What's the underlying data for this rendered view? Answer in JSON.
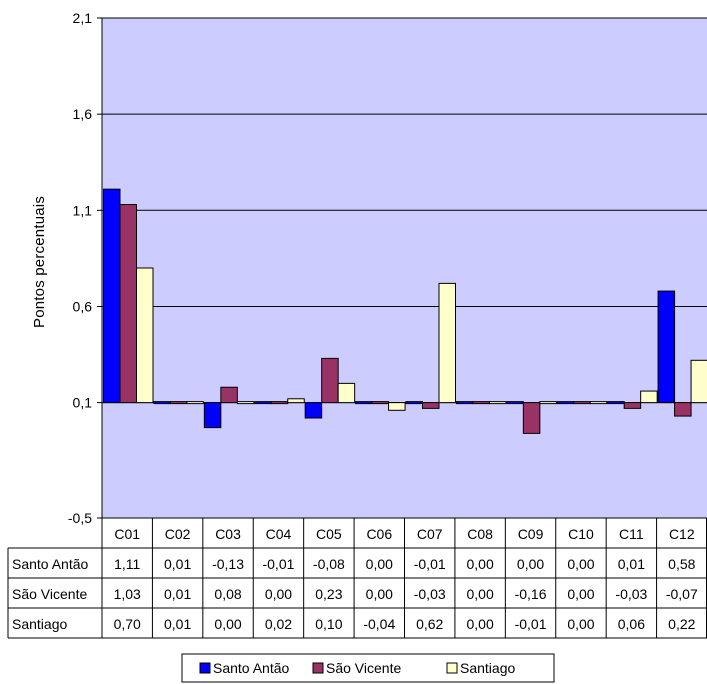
{
  "chart_data": {
    "type": "bar",
    "ylabel": "Pontos percentuais",
    "ylim": [
      -0.5,
      2.1
    ],
    "yticks": [
      "-0,5",
      "0,1",
      "0,6",
      "1,1",
      "1,6",
      "2,1"
    ],
    "ytick_values": [
      -0.5,
      0.1,
      0.6,
      1.1,
      1.6,
      2.1
    ],
    "baseline": 0.1,
    "grid": true,
    "legend_position": "bottom",
    "categories": [
      "C01",
      "C02",
      "C03",
      "C04",
      "C05",
      "C06",
      "C07",
      "C08",
      "C09",
      "C10",
      "C11",
      "C12"
    ],
    "series": [
      {
        "name": "Santo Antão",
        "color": "#0000ff",
        "values": [
          1.11,
          0.01,
          -0.13,
          -0.01,
          -0.08,
          0.0,
          -0.01,
          0.0,
          0.0,
          0.0,
          0.01,
          0.58
        ],
        "labels": [
          "1,11",
          "0,01",
          "-0,13",
          "-0,01",
          "-0,08",
          "0,00",
          "-0,01",
          "0,00",
          "0,00",
          "0,00",
          "0,01",
          "0,58"
        ]
      },
      {
        "name": "São Vicente",
        "color": "#993366",
        "values": [
          1.03,
          0.01,
          0.08,
          0.0,
          0.23,
          0.0,
          -0.03,
          0.0,
          -0.16,
          0.0,
          -0.03,
          -0.07
        ],
        "labels": [
          "1,03",
          "0,01",
          "0,08",
          "0,00",
          "0,23",
          "0,00",
          "-0,03",
          "0,00",
          "-0,16",
          "0,00",
          "-0,03",
          "-0,07"
        ]
      },
      {
        "name": "Santiago",
        "color": "#ffffcc",
        "values": [
          0.7,
          0.01,
          0.0,
          0.02,
          0.1,
          -0.04,
          0.62,
          0.0,
          -0.01,
          0.0,
          0.06,
          0.22
        ],
        "labels": [
          "0,70",
          "0,01",
          "0,00",
          "0,02",
          "0,10",
          "-0,04",
          "0,62",
          "0,00",
          "-0,01",
          "0,00",
          "0,06",
          "0,22"
        ]
      }
    ],
    "plot_background": "#ccccff"
  }
}
